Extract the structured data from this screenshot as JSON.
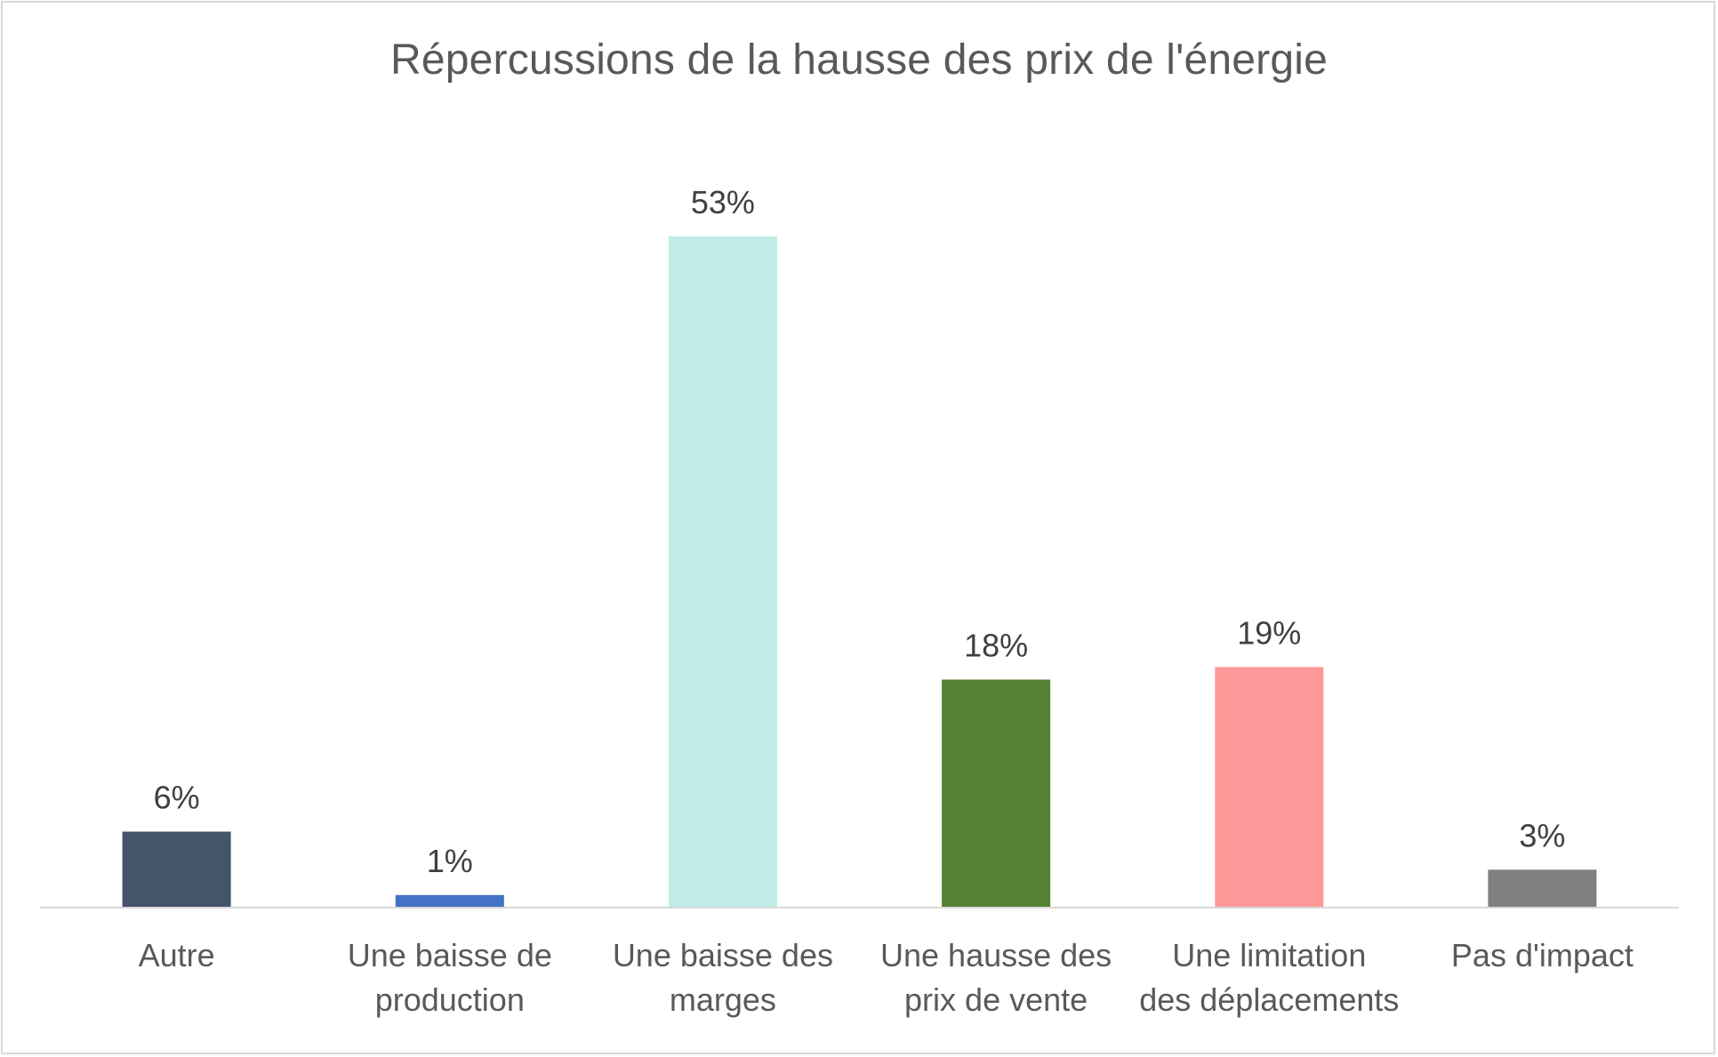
{
  "chart_data": {
    "type": "bar",
    "title": "Répercussions de la hausse des prix de l'énergie",
    "xlabel": "",
    "ylabel": "",
    "ylim": [
      0,
      55
    ],
    "grid": false,
    "legend": "none",
    "categories": [
      [
        "Autre"
      ],
      [
        "Une baisse de",
        "production"
      ],
      [
        "Une baisse des",
        "marges"
      ],
      [
        "Une hausse des",
        "prix de vente"
      ],
      [
        "Une limitation",
        "des déplacements"
      ],
      [
        "Pas d'impact"
      ]
    ],
    "values": [
      6,
      1,
      53,
      18,
      19,
      3
    ],
    "value_labels": [
      "6%",
      "1%",
      "53%",
      "18%",
      "19%",
      "3%"
    ],
    "colors": [
      "#44546a",
      "#4472c4",
      "#bfece6",
      "#548235",
      "#ff9999",
      "#808080"
    ],
    "axis_color": "#d9d9d9"
  }
}
